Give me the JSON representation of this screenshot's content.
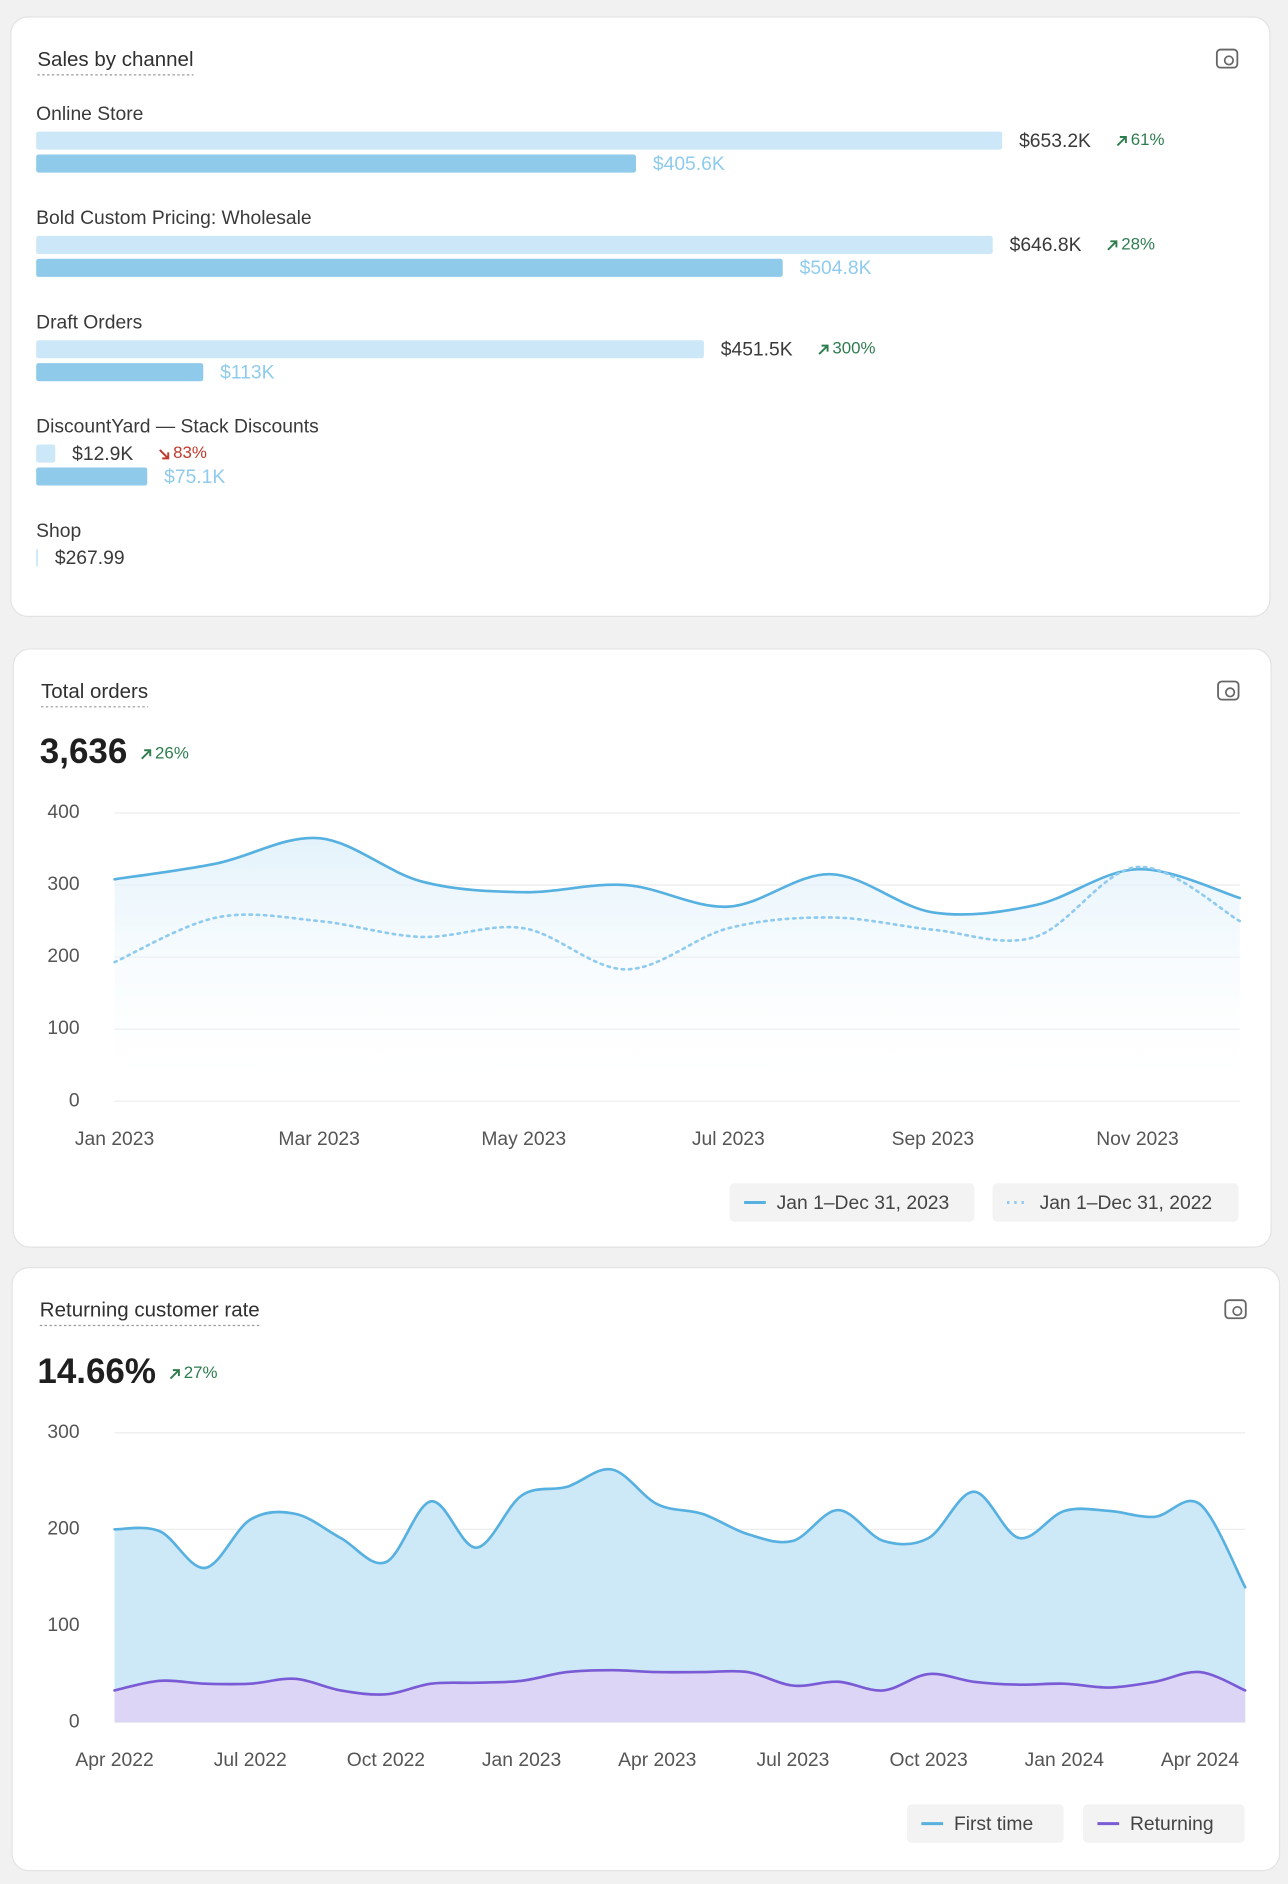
{
  "chart_data": [
    {
      "type": "bar",
      "orientation": "horizontal",
      "title": "Sales by channel",
      "categories": [
        "Online Store",
        "Bold Custom Pricing: Wholesale",
        "Draft Orders",
        "DiscountYard — Stack Discounts",
        "Shop"
      ],
      "series": [
        {
          "color": "#cce7f8",
          "values": [
            653200,
            646800,
            451500,
            12900,
            267.99
          ],
          "value_labels": [
            "$653.2K",
            "$646.8K",
            "$451.5K",
            "$12.9K",
            "$267.99"
          ]
        },
        {
          "color": "#8fcaeb",
          "values": [
            405600,
            504800,
            113000,
            75100,
            null
          ],
          "value_labels": [
            "$405.6K",
            "$504.8K",
            "$113K",
            "$75.1K",
            null
          ]
        }
      ],
      "changes": [
        61,
        28,
        300,
        -83,
        null
      ],
      "change_labels": [
        "61%",
        "28%",
        "300%",
        "83%",
        null
      ]
    },
    {
      "type": "line",
      "title": "Total orders",
      "total": 3636,
      "total_label": "3,636",
      "change": 26,
      "change_label": "26%",
      "categories": [
        "Jan 2023",
        null,
        "Mar 2023",
        null,
        "May 2023",
        null,
        "Jul 2023",
        null,
        "Sep 2023",
        null,
        "Nov 2023",
        null
      ],
      "series": [
        {
          "name": "Jan 1–Dec 31, 2023",
          "color": "#56b0e0",
          "line_style": "solid",
          "area": true,
          "values": [
            308,
            330,
            365,
            305,
            290,
            300,
            270,
            315,
            262,
            272,
            322,
            282
          ]
        },
        {
          "name": "Jan 1–Dec 31, 2022",
          "color": "#8fcbee",
          "line_style": "dotted",
          "area": false,
          "values": [
            193,
            255,
            250,
            228,
            240,
            183,
            240,
            255,
            238,
            228,
            325,
            250
          ]
        }
      ],
      "ylim": [
        0,
        400
      ],
      "yticks": [
        0,
        100,
        200,
        300,
        400
      ],
      "grid": true
    },
    {
      "type": "area",
      "title": "Returning customer rate",
      "total": 14.66,
      "total_label": "14.66%",
      "change": 27,
      "change_label": "27%",
      "categories": [
        "Apr 2022",
        null,
        null,
        "Jul 2022",
        null,
        null,
        "Oct 2022",
        null,
        null,
        "Jan 2023",
        null,
        null,
        "Apr 2023",
        null,
        null,
        "Jul 2023",
        null,
        null,
        "Oct 2023",
        null,
        null,
        "Jan 2024",
        null,
        null,
        "Apr 2024",
        null
      ],
      "series": [
        {
          "name": "First time",
          "color": "#56b0e0",
          "fill": "#cde8f7",
          "values": [
            200,
            198,
            160,
            210,
            216,
            191,
            166,
            229,
            181,
            235,
            244,
            262,
            226,
            216,
            195,
            188,
            220,
            188,
            191,
            239,
            191,
            219,
            219,
            213,
            226,
            140
          ]
        },
        {
          "name": "Returning",
          "color": "#7a5bd6",
          "fill": "#ddd5f5",
          "values": [
            33,
            43,
            40,
            40,
            45,
            33,
            29,
            40,
            41,
            43,
            52,
            54,
            52,
            52,
            52,
            38,
            42,
            33,
            50,
            42,
            39,
            40,
            36,
            42,
            52,
            33
          ]
        }
      ],
      "ylim": [
        0,
        300
      ],
      "yticks": [
        0,
        100,
        200,
        300
      ],
      "grid": true
    }
  ]
}
